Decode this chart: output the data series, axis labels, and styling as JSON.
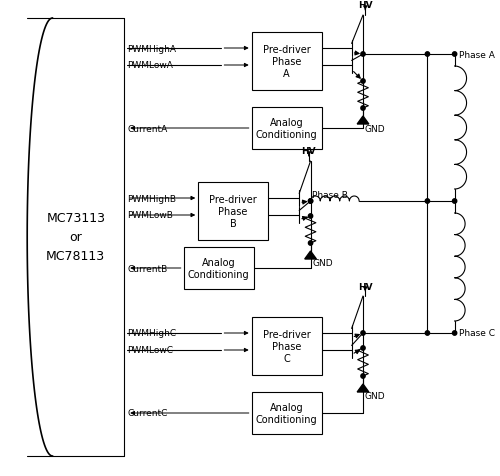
{
  "bg": "#ffffff",
  "mc_label": "MC73113\nor\nMC78113",
  "chip_l": 28,
  "chip_r": 128,
  "chip_t": 458,
  "chip_b": 20,
  "phases": [
    "A",
    "B",
    "C"
  ],
  "phase_labels": [
    "Phase A",
    "Phase B",
    "Phase C"
  ],
  "signal_labels_a": [
    "PWMHighA",
    "PWMLowA",
    "CurrentA"
  ],
  "signal_labels_b": [
    "PWMHighB",
    "PWMLowB",
    "CurrentB"
  ],
  "signal_labels_c": [
    "PWMHighC",
    "PWMLowC",
    "CurrentC"
  ],
  "hv_label": "HV",
  "gnd_label": "GND",
  "phase_b_label": "Phase B"
}
